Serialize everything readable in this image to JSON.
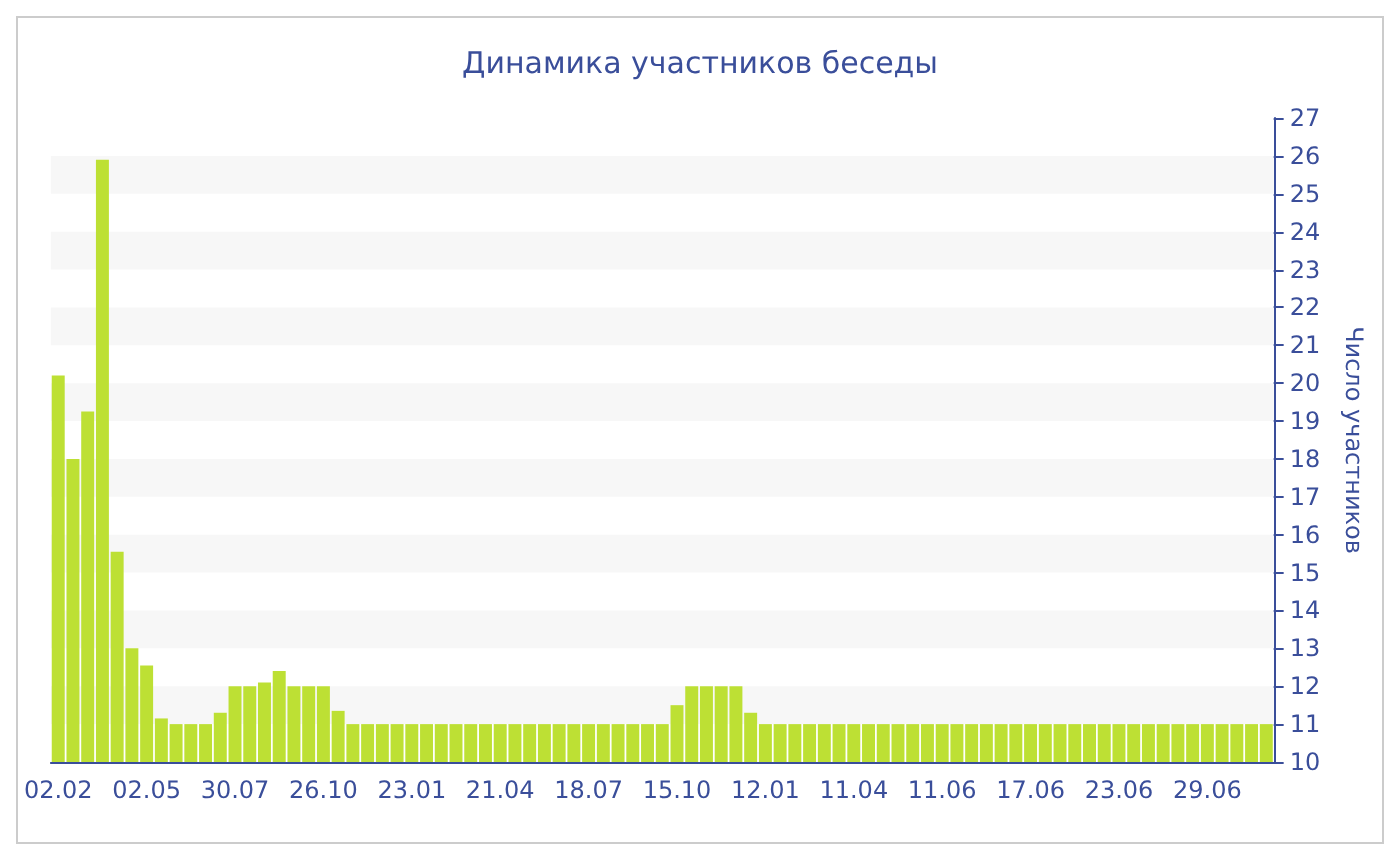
{
  "chart_data": {
    "type": "bar",
    "title": "Динамика участников беседы",
    "ylabel": "Число участников",
    "categories": [
      "02.02",
      null,
      null,
      null,
      null,
      null,
      "02.05",
      null,
      null,
      null,
      null,
      null,
      "30.07",
      null,
      null,
      null,
      null,
      null,
      "26.10",
      null,
      null,
      null,
      null,
      null,
      "23.01",
      null,
      null,
      null,
      null,
      null,
      "21.04",
      null,
      null,
      null,
      null,
      null,
      "18.07",
      null,
      null,
      null,
      null,
      null,
      "15.10",
      null,
      null,
      null,
      null,
      null,
      "12.01",
      null,
      null,
      null,
      null,
      null,
      "11.04",
      null,
      null,
      null,
      null,
      null,
      "11.06",
      null,
      null,
      null,
      null,
      null,
      "17.06",
      null,
      null,
      null,
      null,
      null,
      "23.06",
      null,
      null,
      null,
      null,
      null,
      "29.06",
      null,
      null,
      null,
      null
    ],
    "values": [
      20.2,
      18,
      19.25,
      25.9,
      15.55,
      13,
      12.55,
      11.15,
      11,
      11,
      11,
      11.3,
      12,
      12,
      12.1,
      12.4,
      12,
      12,
      12,
      11.35,
      11,
      11,
      11,
      11,
      11,
      11,
      11,
      11,
      11,
      11,
      11,
      11,
      11,
      11,
      11,
      11,
      11,
      11,
      11,
      11,
      11,
      11,
      11.5,
      12,
      12,
      12,
      12,
      11.3,
      11,
      11,
      11,
      11,
      11,
      11,
      11,
      11,
      11,
      11,
      11,
      11,
      11,
      11,
      11,
      11,
      11,
      11,
      11,
      11,
      11,
      11,
      11,
      11,
      11,
      11,
      11,
      11,
      11,
      11,
      11,
      11,
      11,
      11,
      11
    ],
    "color": "#bde034",
    "ylim": [
      10,
      27
    ],
    "yticks": [
      10,
      11,
      12,
      13,
      14,
      15,
      16,
      17,
      18,
      19,
      20,
      21,
      22,
      23,
      24,
      25,
      26,
      27
    ]
  }
}
